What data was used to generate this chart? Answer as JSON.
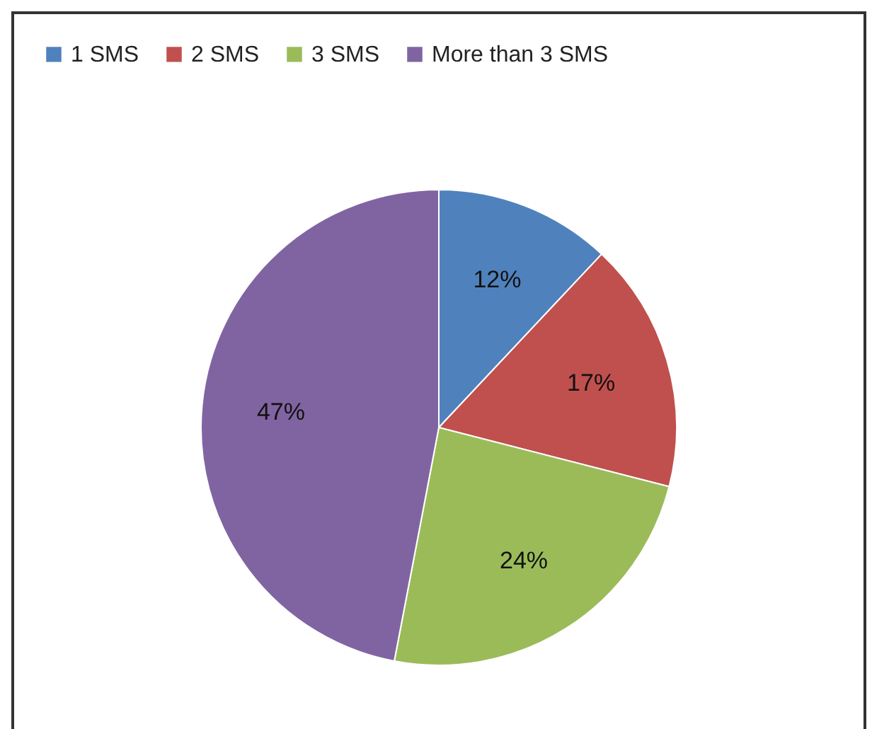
{
  "chart_data": {
    "type": "pie",
    "categories": [
      "1 SMS",
      "2 SMS",
      "3 SMS",
      "More than 3 SMS"
    ],
    "values": [
      12,
      17,
      24,
      47
    ],
    "colors": [
      "#4f81bd",
      "#c0504d",
      "#9bbb59",
      "#8064a2"
    ],
    "value_labels": [
      "12%",
      "17%",
      "24%",
      "47%"
    ],
    "legend": "top left"
  }
}
